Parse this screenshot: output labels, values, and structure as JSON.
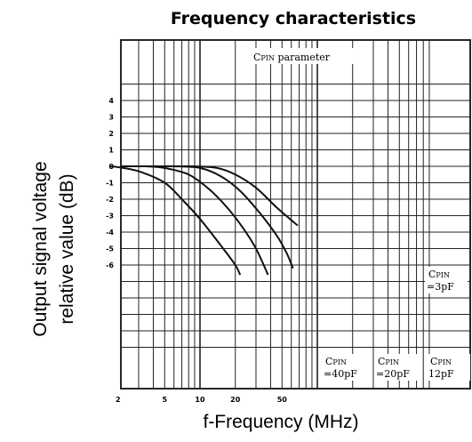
{
  "chart_data": {
    "type": "line",
    "title": "Frequency characteristics",
    "xlabel": "f-Frequency (MHz)",
    "ylabel_lines": [
      "Output signal voltage",
      "relative value (dB)"
    ],
    "x_scale": "log",
    "xlim": [
      1,
      100
    ],
    "ylim": [
      -11,
      5
    ],
    "grid": true,
    "x_ticks": [
      {
        "value": 2,
        "label": "2"
      },
      {
        "value": 5,
        "label": "5"
      },
      {
        "value": 10,
        "label": "10"
      },
      {
        "value": 20,
        "label": "20"
      },
      {
        "value": 50,
        "label": "50"
      }
    ],
    "y_ticks": [
      {
        "value": 4,
        "label": "4"
      },
      {
        "value": 3,
        "label": "3"
      },
      {
        "value": 2,
        "label": "2"
      },
      {
        "value": 1,
        "label": "1"
      },
      {
        "value": 0,
        "label": "0"
      },
      {
        "value": -1,
        "label": "-1"
      },
      {
        "value": -2,
        "label": "-2"
      },
      {
        "value": -3,
        "label": "-3"
      },
      {
        "value": -4,
        "label": "-4"
      },
      {
        "value": -5,
        "label": "-5"
      },
      {
        "value": -6,
        "label": "-6"
      }
    ],
    "annotation": {
      "main": "C",
      "sub": "PIN",
      "rest": " parameter"
    },
    "series": [
      {
        "label_main": "C",
        "label_sub": "PIN",
        "label_value": "=40pF",
        "points": [
          [
            1.7,
            0
          ],
          [
            2,
            -0.05
          ],
          [
            3,
            -0.3
          ],
          [
            5,
            -1
          ],
          [
            7,
            -2
          ],
          [
            10,
            -3.2
          ],
          [
            15,
            -4.8
          ],
          [
            20,
            -6
          ],
          [
            22,
            -6.6
          ]
        ]
      },
      {
        "label_main": "C",
        "label_sub": "PIN",
        "label_value": "=20pF",
        "points": [
          [
            3.5,
            0
          ],
          [
            5,
            -0.1
          ],
          [
            8,
            -0.5
          ],
          [
            12,
            -1.4
          ],
          [
            17,
            -2.5
          ],
          [
            23,
            -3.7
          ],
          [
            30,
            -5
          ],
          [
            38,
            -6.6
          ]
        ]
      },
      {
        "label_main": "C",
        "label_sub": "PIN",
        "label_value": "12pF",
        "points": [
          [
            6,
            0
          ],
          [
            10,
            -0.1
          ],
          [
            15,
            -0.6
          ],
          [
            22,
            -1.5
          ],
          [
            32,
            -2.8
          ],
          [
            45,
            -4.2
          ],
          [
            55,
            -5.3
          ],
          [
            62,
            -6.2
          ]
        ]
      },
      {
        "label_main": "C",
        "label_sub": "PIN",
        "label_value": "=3pF",
        "points": [
          [
            9,
            0
          ],
          [
            14,
            -0.1
          ],
          [
            20,
            -0.5
          ],
          [
            30,
            -1.3
          ],
          [
            45,
            -2.5
          ],
          [
            68,
            -3.6
          ]
        ]
      }
    ]
  }
}
